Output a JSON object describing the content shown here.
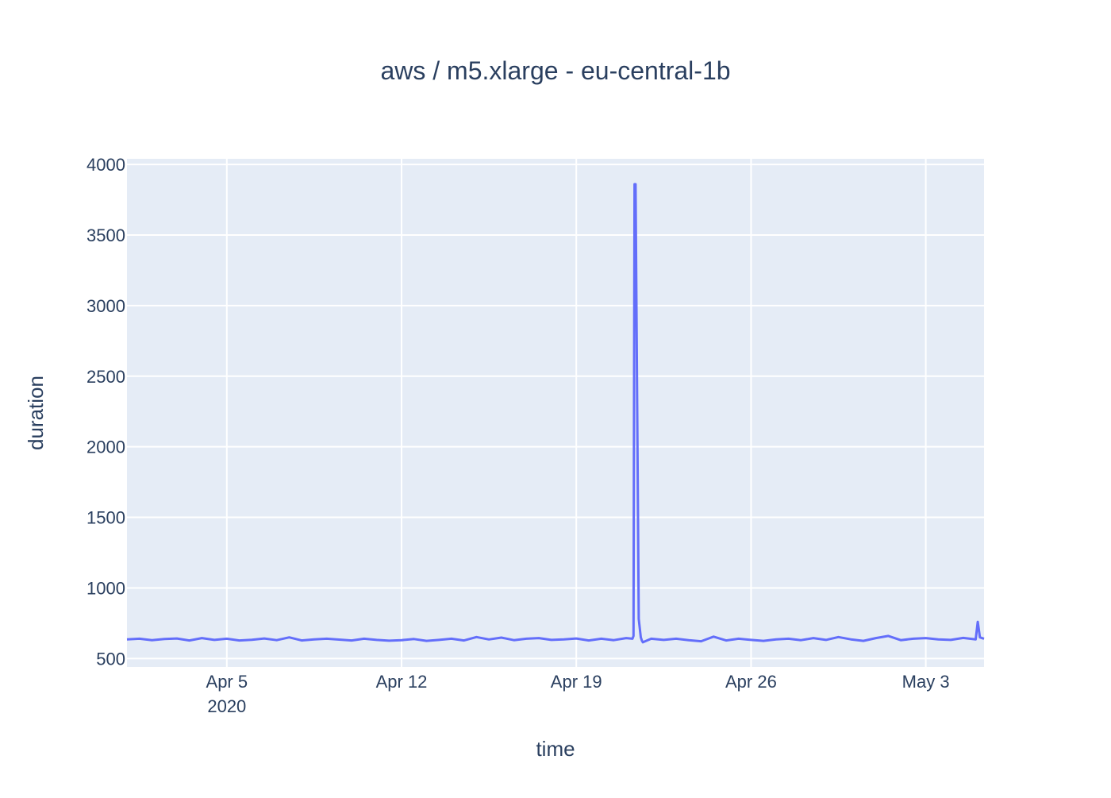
{
  "chart_data": {
    "type": "line",
    "title": "aws / m5.xlarge - eu-central-1b",
    "xlabel": "time",
    "ylabel": "duration",
    "x_axis_type": "date",
    "xlim": [
      "2020-04-01T00:00",
      "2020-05-05T08:00"
    ],
    "ylim": [
      440,
      4040
    ],
    "y_ticks": [
      500,
      1000,
      1500,
      2000,
      2500,
      3000,
      3500,
      4000
    ],
    "x_ticks": [
      {
        "date": "2020-04-05",
        "label": "Apr 5",
        "sublabel": "2020"
      },
      {
        "date": "2020-04-12",
        "label": "Apr 12"
      },
      {
        "date": "2020-04-19",
        "label": "Apr 19"
      },
      {
        "date": "2020-04-26",
        "label": "Apr 26"
      },
      {
        "date": "2020-05-03",
        "label": "May 3"
      }
    ],
    "grid": true,
    "legend": "none",
    "colors": {
      "line": "#636efa",
      "plot_bg": "#e5ecf6",
      "grid": "#ffffff",
      "text": "#2a3f5f"
    },
    "series": [
      {
        "x": [
          "2020-04-01T00:00",
          "2020-04-01T12:00",
          "2020-04-02T00:00",
          "2020-04-02T12:00",
          "2020-04-03T00:00",
          "2020-04-03T12:00",
          "2020-04-04T00:00",
          "2020-04-04T12:00",
          "2020-04-05T00:00",
          "2020-04-05T12:00",
          "2020-04-06T00:00",
          "2020-04-06T12:00",
          "2020-04-07T00:00",
          "2020-04-07T12:00",
          "2020-04-08T00:00",
          "2020-04-08T12:00",
          "2020-04-09T00:00",
          "2020-04-09T12:00",
          "2020-04-10T00:00",
          "2020-04-10T12:00",
          "2020-04-11T00:00",
          "2020-04-11T12:00",
          "2020-04-12T00:00",
          "2020-04-12T12:00",
          "2020-04-13T00:00",
          "2020-04-13T12:00",
          "2020-04-14T00:00",
          "2020-04-14T12:00",
          "2020-04-15T00:00",
          "2020-04-15T12:00",
          "2020-04-16T00:00",
          "2020-04-16T12:00",
          "2020-04-17T00:00",
          "2020-04-17T12:00",
          "2020-04-18T00:00",
          "2020-04-18T12:00",
          "2020-04-19T00:00",
          "2020-04-19T12:00",
          "2020-04-20T00:00",
          "2020-04-20T12:00",
          "2020-04-21T00:00",
          "2020-04-21T06:00",
          "2020-04-21T07:00",
          "2020-04-21T08:00",
          "2020-04-21T09:00",
          "2020-04-21T12:00",
          "2020-04-21T14:00",
          "2020-04-21T15:00",
          "2020-04-21T16:00",
          "2020-04-22T00:00",
          "2020-04-22T12:00",
          "2020-04-23T00:00",
          "2020-04-23T12:00",
          "2020-04-24T00:00",
          "2020-04-24T12:00",
          "2020-04-25T00:00",
          "2020-04-25T12:00",
          "2020-04-26T00:00",
          "2020-04-26T12:00",
          "2020-04-27T00:00",
          "2020-04-27T12:00",
          "2020-04-28T00:00",
          "2020-04-28T12:00",
          "2020-04-29T00:00",
          "2020-04-29T12:00",
          "2020-04-30T00:00",
          "2020-04-30T12:00",
          "2020-05-01T00:00",
          "2020-05-01T12:00",
          "2020-05-02T00:00",
          "2020-05-02T12:00",
          "2020-05-03T00:00",
          "2020-05-03T12:00",
          "2020-05-04T00:00",
          "2020-05-04T12:00",
          "2020-05-05T00:00",
          "2020-05-05T02:00",
          "2020-05-05T04:00",
          "2020-05-05T08:00"
        ],
        "y": [
          635,
          640,
          630,
          638,
          642,
          628,
          645,
          632,
          640,
          628,
          633,
          642,
          630,
          650,
          628,
          636,
          640,
          634,
          628,
          640,
          632,
          626,
          630,
          638,
          625,
          632,
          640,
          628,
          652,
          635,
          648,
          630,
          640,
          645,
          632,
          636,
          642,
          628,
          640,
          630,
          645,
          640,
          660,
          3860,
          3860,
          780,
          650,
          628,
          615,
          640,
          632,
          640,
          630,
          622,
          655,
          628,
          640,
          632,
          625,
          636,
          640,
          630,
          645,
          632,
          652,
          636,
          625,
          645,
          660,
          630,
          640,
          645,
          636,
          632,
          646,
          636,
          760,
          650,
          640
        ]
      }
    ]
  }
}
